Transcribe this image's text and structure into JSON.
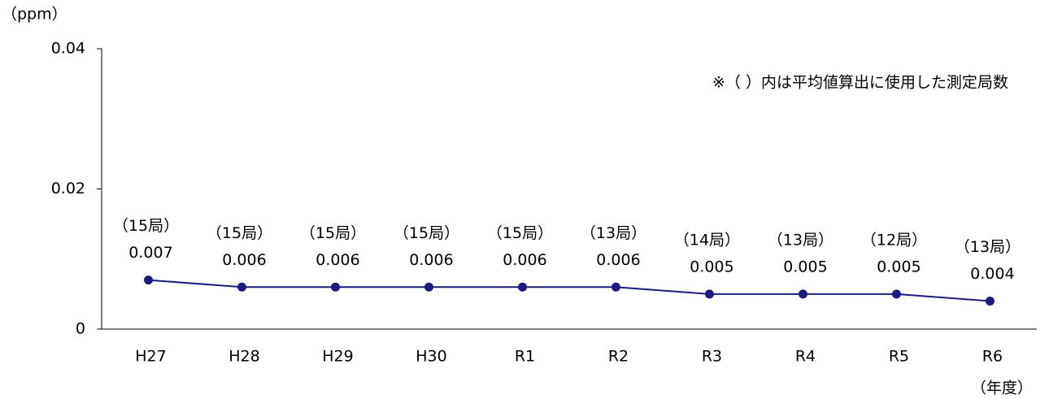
{
  "chart_data": {
    "type": "line",
    "y_unit": "（ppm）",
    "x_unit": "（年度）",
    "note": "※（ ）内は平均値算出に使用した測定局数",
    "categories": [
      "H27",
      "H28",
      "H29",
      "H30",
      "R1",
      "R2",
      "R3",
      "R4",
      "R5",
      "R6"
    ],
    "series": [
      {
        "color": "#1c1c80",
        "values": [
          0.007,
          0.006,
          0.006,
          0.006,
          0.006,
          0.006,
          0.005,
          0.005,
          0.005,
          0.004
        ],
        "station_labels": [
          "（15局）",
          "（15局）",
          "（15局）",
          "（15局）",
          "（15局）",
          "（13局）",
          "（14局）",
          "（13局）",
          "（12局）",
          "（13局）"
        ]
      }
    ],
    "ylim": [
      0,
      0.04
    ],
    "yticks": [
      0,
      0.02,
      0.04
    ],
    "grid": false
  }
}
